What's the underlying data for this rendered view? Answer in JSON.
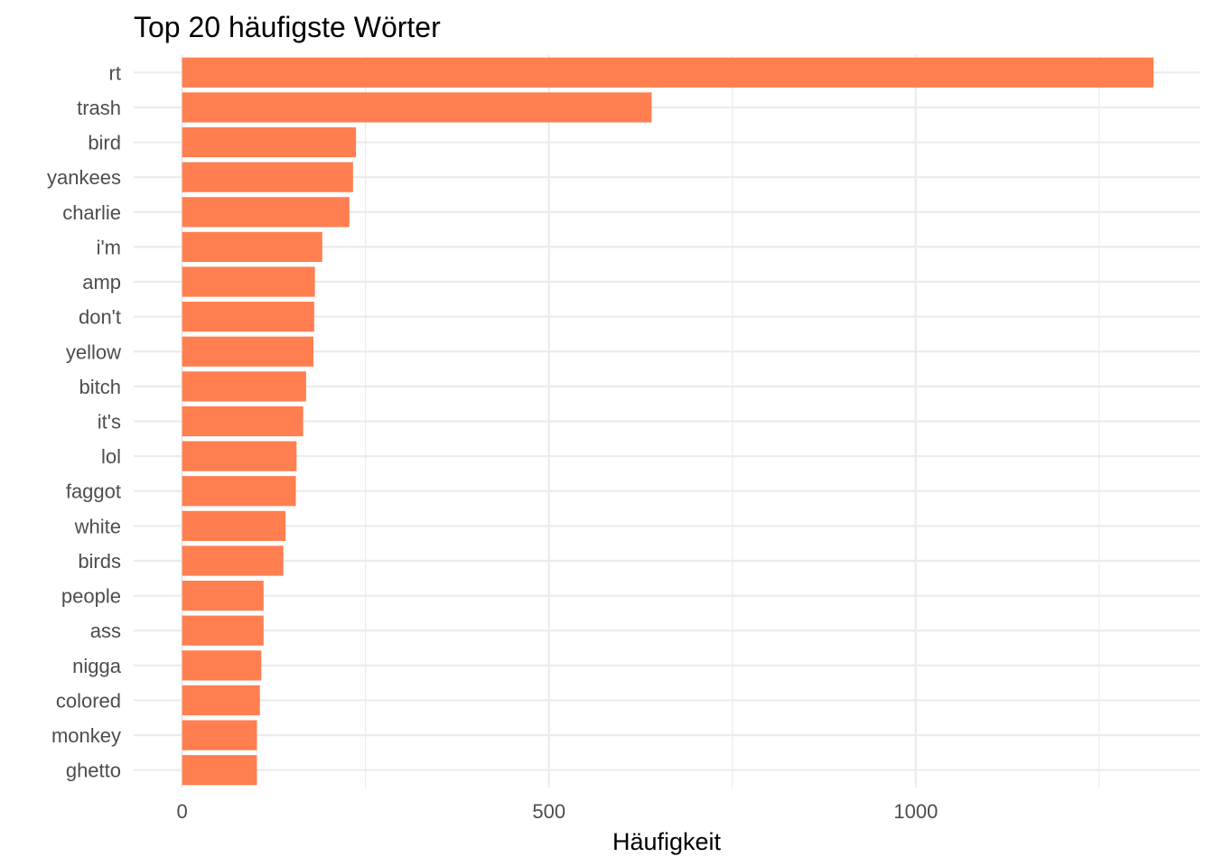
{
  "chart_data": {
    "type": "bar",
    "orientation": "horizontal",
    "title": "Top 20 häufigste Wörter",
    "xlabel": "Häufigkeit",
    "ylabel": "",
    "categories": [
      "rt",
      "trash",
      "bird",
      "yankees",
      "charlie",
      "i'm",
      "amp",
      "don't",
      "yellow",
      "bitch",
      "it's",
      "lol",
      "faggot",
      "white",
      "birds",
      "people",
      "ass",
      "nigga",
      "colored",
      "monkey",
      "ghetto"
    ],
    "values": [
      1324,
      640,
      237,
      233,
      228,
      191,
      181,
      180,
      179,
      169,
      165,
      156,
      155,
      141,
      138,
      111,
      111,
      108,
      106,
      102,
      102
    ],
    "xlim": [
      -66,
      1388
    ],
    "x_ticks": [
      0,
      500,
      1000
    ],
    "x_tick_labels": [
      "0",
      "500",
      "1000"
    ],
    "x_minor_ticks": [
      250,
      750,
      1250
    ],
    "grid": true,
    "legend": "none",
    "bar_color": "#FF7F50",
    "grid_color": "#ebebeb"
  }
}
